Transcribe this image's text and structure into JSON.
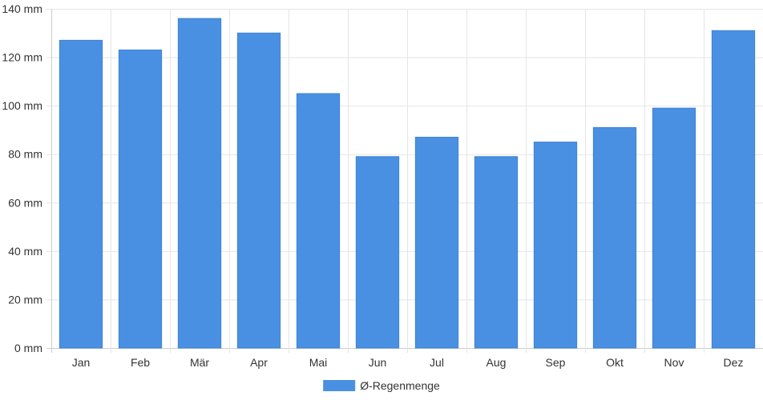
{
  "chart_data": {
    "type": "bar",
    "categories": [
      "Jan",
      "Feb",
      "Mär",
      "Apr",
      "Mai",
      "Jun",
      "Jul",
      "Aug",
      "Sep",
      "Okt",
      "Nov",
      "Dez"
    ],
    "series": [
      {
        "name": "Ø-Regenmenge",
        "color": "#4a90e2",
        "values": [
          127,
          123,
          136,
          130,
          105,
          79,
          87,
          79,
          85,
          91,
          99,
          131
        ]
      }
    ],
    "ylim": [
      0,
      140
    ],
    "y_ticks": [
      0,
      20,
      40,
      60,
      80,
      100,
      120,
      140
    ],
    "y_tick_suffix": " mm",
    "grid": true,
    "legend_position": "bottom-center"
  }
}
